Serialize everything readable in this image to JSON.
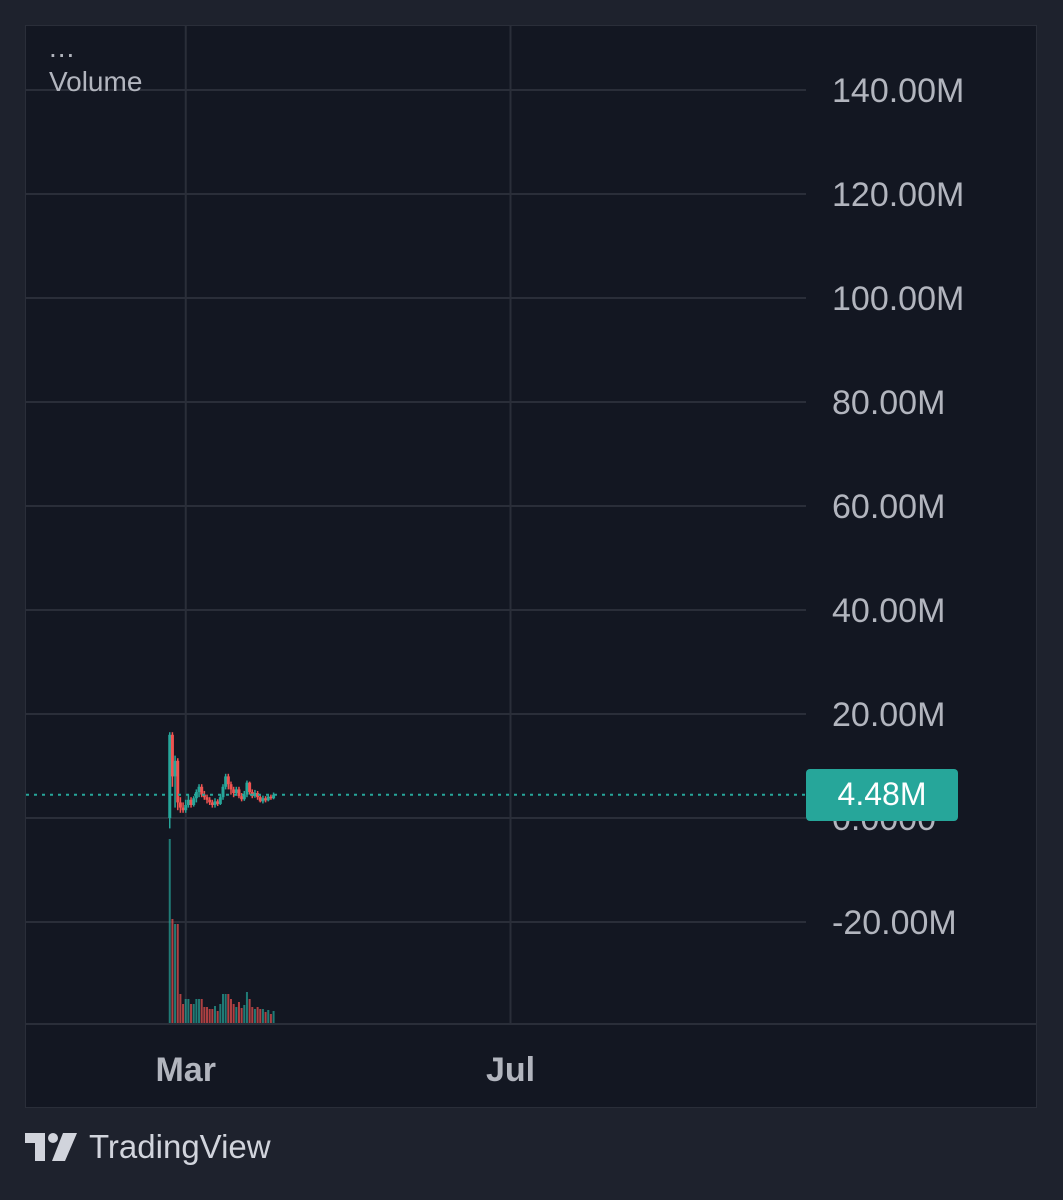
{
  "legend": {
    "menu": "...",
    "indicator": "Volume"
  },
  "colors": {
    "background": "#131722",
    "grid": "#2a2e39",
    "up": "#26a69a",
    "down": "#ef5350",
    "price_line": "#26a69a",
    "axis_text": "#b2b5be"
  },
  "chart_data": {
    "type": "line",
    "title": "",
    "xlabel": "",
    "ylabel": "",
    "ylim": [
      -35000000,
      150000000
    ],
    "y_ticks": [
      {
        "value": 140000000,
        "label": "140.00M"
      },
      {
        "value": 120000000,
        "label": "120.00M"
      },
      {
        "value": 100000000,
        "label": "100.00M"
      },
      {
        "value": 80000000,
        "label": "80.00M"
      },
      {
        "value": 60000000,
        "label": "60.00M"
      },
      {
        "value": 40000000,
        "label": "40.00M"
      },
      {
        "value": 20000000,
        "label": "20.00M"
      },
      {
        "value": 0,
        "label": "0.0000"
      },
      {
        "value": -20000000,
        "label": "-20.00M"
      }
    ],
    "x_ticks": [
      {
        "date": "2024-03-01",
        "label": "Mar"
      },
      {
        "date": "2024-07-01",
        "label": "Jul"
      }
    ],
    "xlim": [
      "2024-01-01",
      "2024-10-20"
    ],
    "grid": true,
    "last_value": 4480000,
    "last_value_label": "4.48M",
    "series": [
      {
        "values": [
          {
            "date": "2024-02-24",
            "open": 0,
            "close": 16000000,
            "high": 16500000,
            "low": -2000000
          },
          {
            "date": "2024-02-25",
            "open": 16000000,
            "close": 8000000,
            "high": 16500000,
            "low": 6000000
          },
          {
            "date": "2024-02-26",
            "open": 8000000,
            "close": 11000000,
            "high": 12000000,
            "low": 2000000
          },
          {
            "date": "2024-02-27",
            "open": 11000000,
            "close": 3000000,
            "high": 11500000,
            "low": 1500000
          },
          {
            "date": "2024-02-28",
            "open": 3000000,
            "close": 2000000,
            "high": 4000000,
            "low": 1000000
          },
          {
            "date": "2024-02-29",
            "open": 2000000,
            "close": 1500000,
            "high": 3000000,
            "low": 1000000
          },
          {
            "date": "2024-03-01",
            "open": 1500000,
            "close": 2500000,
            "high": 3500000,
            "low": 1000000
          },
          {
            "date": "2024-03-02",
            "open": 2500000,
            "close": 3500000,
            "high": 4500000,
            "low": 2000000
          },
          {
            "date": "2024-03-03",
            "open": 3500000,
            "close": 2500000,
            "high": 4000000,
            "low": 2000000
          },
          {
            "date": "2024-03-04",
            "open": 2500000,
            "close": 3800000,
            "high": 4200000,
            "low": 2200000
          },
          {
            "date": "2024-03-05",
            "open": 3800000,
            "close": 5000000,
            "high": 5500000,
            "low": 3000000
          },
          {
            "date": "2024-03-06",
            "open": 5000000,
            "close": 6000000,
            "high": 6500000,
            "low": 4000000
          },
          {
            "date": "2024-03-07",
            "open": 6000000,
            "close": 4500000,
            "high": 6500000,
            "low": 4000000
          },
          {
            "date": "2024-03-08",
            "open": 4500000,
            "close": 4000000,
            "high": 5200000,
            "low": 3500000
          },
          {
            "date": "2024-03-09",
            "open": 4000000,
            "close": 3500000,
            "high": 4500000,
            "low": 2800000
          },
          {
            "date": "2024-03-10",
            "open": 3500000,
            "close": 3000000,
            "high": 4000000,
            "low": 2500000
          },
          {
            "date": "2024-03-11",
            "open": 3000000,
            "close": 2500000,
            "high": 3500000,
            "low": 2000000
          },
          {
            "date": "2024-03-12",
            "open": 2500000,
            "close": 3200000,
            "high": 3800000,
            "low": 2000000
          },
          {
            "date": "2024-03-13",
            "open": 3200000,
            "close": 2700000,
            "high": 3600000,
            "low": 2300000
          },
          {
            "date": "2024-03-14",
            "open": 2700000,
            "close": 4000000,
            "high": 4500000,
            "low": 2500000
          },
          {
            "date": "2024-03-15",
            "open": 4000000,
            "close": 6000000,
            "high": 6500000,
            "low": 3500000
          },
          {
            "date": "2024-03-16",
            "open": 6000000,
            "close": 8000000,
            "high": 8500000,
            "low": 5500000
          },
          {
            "date": "2024-03-17",
            "open": 8000000,
            "close": 6500000,
            "high": 8500000,
            "low": 5500000
          },
          {
            "date": "2024-03-18",
            "open": 6500000,
            "close": 5500000,
            "high": 7000000,
            "low": 4500000
          },
          {
            "date": "2024-03-19",
            "open": 5500000,
            "close": 4800000,
            "high": 6000000,
            "low": 4000000
          },
          {
            "date": "2024-03-20",
            "open": 4800000,
            "close": 5500000,
            "high": 6000000,
            "low": 4300000
          },
          {
            "date": "2024-03-21",
            "open": 5500000,
            "close": 4200000,
            "high": 6000000,
            "low": 3800000
          },
          {
            "date": "2024-03-22",
            "open": 4200000,
            "close": 3600000,
            "high": 4800000,
            "low": 3200000
          },
          {
            "date": "2024-03-23",
            "open": 3600000,
            "close": 4500000,
            "high": 5200000,
            "low": 3300000
          },
          {
            "date": "2024-03-24",
            "open": 4500000,
            "close": 6800000,
            "high": 7200000,
            "low": 4000000
          },
          {
            "date": "2024-03-25",
            "open": 6800000,
            "close": 5000000,
            "high": 7000000,
            "low": 4500000
          },
          {
            "date": "2024-03-26",
            "open": 5000000,
            "close": 4200000,
            "high": 5500000,
            "low": 3800000
          },
          {
            "date": "2024-03-27",
            "open": 4200000,
            "close": 4800000,
            "high": 5400000,
            "low": 3900000
          },
          {
            "date": "2024-03-28",
            "open": 4800000,
            "close": 4000000,
            "high": 5200000,
            "low": 3500000
          },
          {
            "date": "2024-03-29",
            "open": 4000000,
            "close": 3200000,
            "high": 4500000,
            "low": 3000000
          },
          {
            "date": "2024-03-30",
            "open": 3200000,
            "close": 3800000,
            "high": 4300000,
            "low": 2800000
          },
          {
            "date": "2024-03-31",
            "open": 3800000,
            "close": 3400000,
            "high": 4200000,
            "low": 3000000
          },
          {
            "date": "2024-04-01",
            "open": 3400000,
            "close": 4100000,
            "high": 4600000,
            "low": 3200000
          },
          {
            "date": "2024-04-02",
            "open": 4100000,
            "close": 3800000,
            "high": 4500000,
            "low": 3500000
          },
          {
            "date": "2024-04-03",
            "open": 3800000,
            "close": 4480000,
            "high": 4900000,
            "low": 3600000
          }
        ]
      }
    ]
  },
  "footer": {
    "brand": "TradingView"
  }
}
